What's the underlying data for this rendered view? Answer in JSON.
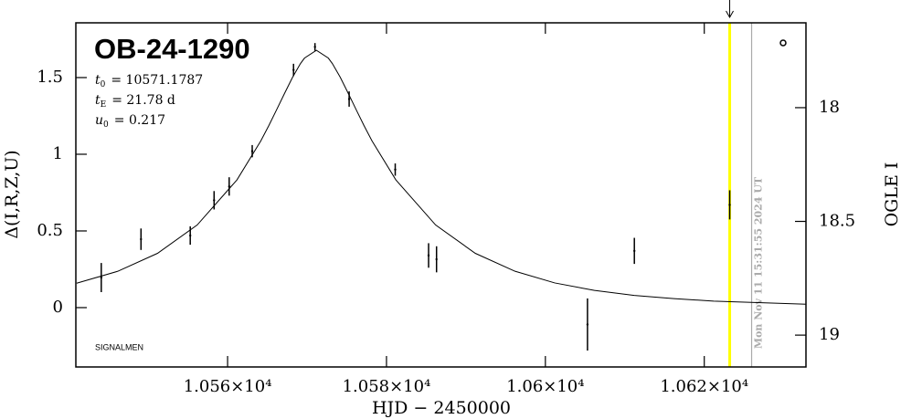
{
  "chart_data": {
    "type": "lightcurve",
    "title": "OB-24-1290",
    "parameters": [
      {
        "symbol": "t",
        "sub": "0",
        "text": "= 10571.1787"
      },
      {
        "symbol": "t",
        "sub": "E",
        "text": "= 21.78 d"
      },
      {
        "symbol": "u",
        "sub": "0",
        "text": "= 0.217"
      }
    ],
    "x_label": "HJD − 2450000",
    "y_label": "Δ(I,R,Z,U)",
    "y2_label": "OGLE I",
    "credit": "SIGNALMEN",
    "xlim": [
      10540.9,
      10632.8
    ],
    "xticks": [
      {
        "value": 10560,
        "label": "1.056×10⁴"
      },
      {
        "value": 10580,
        "label": "1.058×10⁴"
      },
      {
        "value": 10600,
        "label": "1.06×10⁴"
      },
      {
        "value": 10620,
        "label": "1.062×10⁴"
      }
    ],
    "ylim": [
      -0.387,
      1.857
    ],
    "yticks": [
      0,
      0.5,
      1,
      1.5
    ],
    "y2lim": [
      19.14,
      17.627
    ],
    "y2ticks": [
      18,
      18.5,
      19
    ],
    "observations": {
      "color": "#000000",
      "x": [
        10544.1,
        10549.1,
        10555.3,
        10558.3,
        10560.2,
        10563.1,
        10568.3,
        10571.0,
        10575.3,
        10581.1,
        10585.3,
        10586.3,
        10605.3,
        10611.2,
        10623.2
      ],
      "values": [
        0.196,
        0.446,
        0.47,
        0.7,
        0.79,
        1.02,
        1.55,
        1.7,
        1.36,
        0.9,
        0.34,
        0.315,
        -0.11,
        0.37,
        0.67
      ],
      "errors": [
        0.095,
        0.07,
        0.06,
        0.06,
        0.06,
        0.04,
        0.04,
        0.025,
        0.05,
        0.04,
        0.08,
        0.085,
        0.17,
        0.085,
        0.095
      ]
    },
    "model": {
      "color": "#000000",
      "x": [
        10541,
        10546.18,
        10551.18,
        10556.18,
        10561.18,
        10564.18,
        10565.18,
        10566.18,
        10567.18,
        10568.18,
        10569.18,
        10569.68,
        10571.18,
        10572.68,
        10573.18,
        10574.18,
        10575.18,
        10576.18,
        10577.18,
        10578.18,
        10581.18,
        10586.18,
        10591.18,
        10596.18,
        10601.18,
        10606.18,
        10611.18,
        10616.18,
        10621.18,
        10632.8
      ],
      "values": [
        0.159,
        0.237,
        0.354,
        0.539,
        0.833,
        1.087,
        1.186,
        1.291,
        1.398,
        1.502,
        1.592,
        1.627,
        1.678,
        1.627,
        1.592,
        1.502,
        1.398,
        1.291,
        1.186,
        1.087,
        0.833,
        0.539,
        0.354,
        0.237,
        0.161,
        0.112,
        0.0795,
        0.0587,
        0.0422,
        0.0219
      ]
    },
    "markers": [
      {
        "x": 10623.2,
        "color": "#ffff00"
      },
      {
        "x": 10625.96,
        "color": "#aaaaaa",
        "label": "Mon Nov 11 15:31:55 2024 UT"
      }
    ]
  }
}
